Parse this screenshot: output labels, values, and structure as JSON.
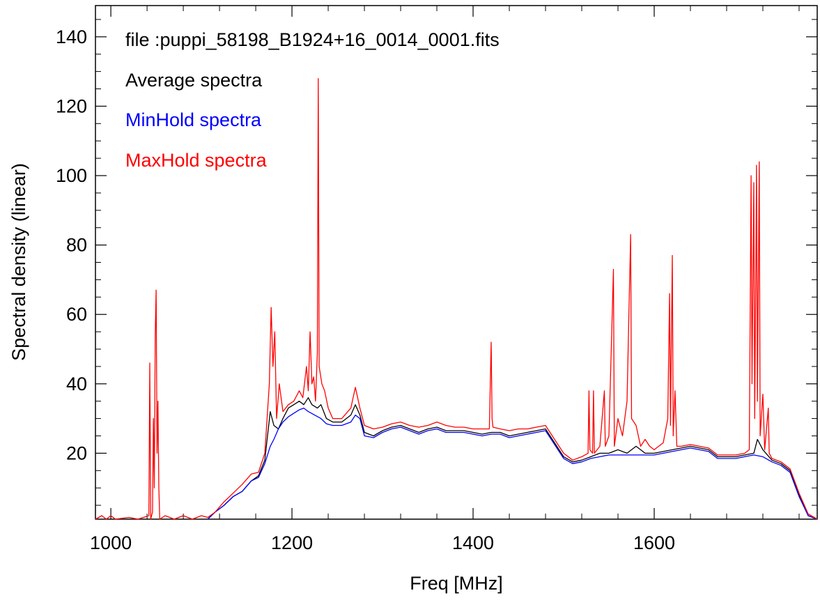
{
  "chart_data": {
    "type": "line",
    "title": "",
    "xlabel": "Freq [MHz]",
    "ylabel": "Spectral density (linear)",
    "xlim": [
      983,
      1780
    ],
    "ylim": [
      1,
      149
    ],
    "grid": false,
    "x_ticks": [
      1000,
      1200,
      1400,
      1600
    ],
    "x_tick_labels": [
      "1000",
      "1200",
      "1400",
      "1600"
    ],
    "y_ticks": [
      20,
      40,
      60,
      80,
      100,
      120,
      140
    ],
    "y_tick_labels": [
      "20",
      "40",
      "60",
      "80",
      "100",
      "120",
      "140"
    ],
    "annotations": [
      {
        "text": "file :puppi_58198_B1924+16_0014_0001.fits",
        "color": "#000000"
      },
      {
        "text": "Average spectra",
        "color": "#000000"
      },
      {
        "text": "MinHold spectra",
        "color": "#0000ff"
      },
      {
        "text": "MaxHold spectra",
        "color": "#ff0000"
      }
    ],
    "series": [
      {
        "name": "Average spectra",
        "color": "#000000",
        "points": [
          [
            1107,
            1
          ],
          [
            1115,
            3
          ],
          [
            1125,
            5
          ],
          [
            1135,
            7.5
          ],
          [
            1145,
            9
          ],
          [
            1155,
            12
          ],
          [
            1163,
            13.5
          ],
          [
            1170,
            18
          ],
          [
            1176,
            32
          ],
          [
            1180,
            28
          ],
          [
            1185,
            27
          ],
          [
            1190,
            30
          ],
          [
            1196,
            33
          ],
          [
            1202,
            34
          ],
          [
            1208,
            35
          ],
          [
            1213,
            34
          ],
          [
            1218,
            36
          ],
          [
            1222,
            34
          ],
          [
            1228,
            33
          ],
          [
            1232,
            34
          ],
          [
            1238,
            30
          ],
          [
            1245,
            29
          ],
          [
            1255,
            29
          ],
          [
            1265,
            31
          ],
          [
            1270,
            34
          ],
          [
            1275,
            31
          ],
          [
            1280,
            26
          ],
          [
            1290,
            25
          ],
          [
            1300,
            26.5
          ],
          [
            1310,
            27.5
          ],
          [
            1320,
            28
          ],
          [
            1330,
            27
          ],
          [
            1340,
            26
          ],
          [
            1350,
            27
          ],
          [
            1360,
            27.5
          ],
          [
            1370,
            26.5
          ],
          [
            1380,
            26.5
          ],
          [
            1390,
            26.5
          ],
          [
            1400,
            26
          ],
          [
            1410,
            25.5
          ],
          [
            1420,
            26
          ],
          [
            1430,
            26
          ],
          [
            1440,
            25
          ],
          [
            1450,
            25.5
          ],
          [
            1460,
            26
          ],
          [
            1470,
            26.5
          ],
          [
            1480,
            27
          ],
          [
            1490,
            23
          ],
          [
            1500,
            19
          ],
          [
            1510,
            17.5
          ],
          [
            1520,
            18
          ],
          [
            1530,
            19
          ],
          [
            1540,
            20
          ],
          [
            1550,
            20
          ],
          [
            1560,
            21
          ],
          [
            1570,
            20
          ],
          [
            1580,
            22
          ],
          [
            1590,
            20
          ],
          [
            1600,
            20
          ],
          [
            1610,
            20.5
          ],
          [
            1620,
            21
          ],
          [
            1630,
            21.5
          ],
          [
            1640,
            22
          ],
          [
            1650,
            21.5
          ],
          [
            1660,
            21
          ],
          [
            1670,
            19
          ],
          [
            1680,
            19
          ],
          [
            1690,
            19
          ],
          [
            1700,
            19.5
          ],
          [
            1710,
            20
          ],
          [
            1714,
            24
          ],
          [
            1720,
            21
          ],
          [
            1730,
            18
          ],
          [
            1740,
            17
          ],
          [
            1750,
            15
          ],
          [
            1760,
            8
          ],
          [
            1770,
            2
          ],
          [
            1780,
            1
          ]
        ]
      },
      {
        "name": "MinHold spectra",
        "color": "#0000ff",
        "points": [
          [
            1107,
            1
          ],
          [
            1115,
            3
          ],
          [
            1125,
            5
          ],
          [
            1135,
            7.5
          ],
          [
            1145,
            9
          ],
          [
            1155,
            12
          ],
          [
            1163,
            13
          ],
          [
            1170,
            17
          ],
          [
            1176,
            22
          ],
          [
            1180,
            24
          ],
          [
            1185,
            27
          ],
          [
            1190,
            29
          ],
          [
            1196,
            30.5
          ],
          [
            1202,
            31.5
          ],
          [
            1208,
            32.5
          ],
          [
            1213,
            33
          ],
          [
            1218,
            32
          ],
          [
            1225,
            31
          ],
          [
            1232,
            30
          ],
          [
            1238,
            28.5
          ],
          [
            1245,
            28
          ],
          [
            1255,
            28
          ],
          [
            1265,
            29
          ],
          [
            1270,
            31
          ],
          [
            1275,
            30
          ],
          [
            1280,
            25
          ],
          [
            1290,
            24.5
          ],
          [
            1300,
            26
          ],
          [
            1310,
            27
          ],
          [
            1320,
            27.5
          ],
          [
            1330,
            26.5
          ],
          [
            1340,
            25.5
          ],
          [
            1350,
            26.5
          ],
          [
            1360,
            27
          ],
          [
            1370,
            26
          ],
          [
            1380,
            26
          ],
          [
            1390,
            26
          ],
          [
            1400,
            25.5
          ],
          [
            1410,
            25
          ],
          [
            1420,
            25.5
          ],
          [
            1430,
            25.5
          ],
          [
            1440,
            24.5
          ],
          [
            1450,
            25
          ],
          [
            1460,
            25.5
          ],
          [
            1470,
            26
          ],
          [
            1480,
            26.5
          ],
          [
            1490,
            22.5
          ],
          [
            1500,
            18.5
          ],
          [
            1510,
            17
          ],
          [
            1520,
            17.5
          ],
          [
            1530,
            18.5
          ],
          [
            1540,
            19
          ],
          [
            1550,
            19.5
          ],
          [
            1560,
            19.5
          ],
          [
            1570,
            19.5
          ],
          [
            1580,
            19.5
          ],
          [
            1590,
            19.5
          ],
          [
            1600,
            19.5
          ],
          [
            1610,
            20
          ],
          [
            1620,
            20.5
          ],
          [
            1630,
            21
          ],
          [
            1640,
            21.5
          ],
          [
            1650,
            21
          ],
          [
            1660,
            20.5
          ],
          [
            1670,
            18.5
          ],
          [
            1680,
            18.5
          ],
          [
            1690,
            18.5
          ],
          [
            1700,
            19
          ],
          [
            1710,
            19.5
          ],
          [
            1720,
            19
          ],
          [
            1730,
            17.5
          ],
          [
            1740,
            16.5
          ],
          [
            1750,
            14.5
          ],
          [
            1760,
            7.5
          ],
          [
            1770,
            2
          ],
          [
            1780,
            1
          ]
        ]
      },
      {
        "name": "MaxHold spectra",
        "color": "#ff0000",
        "points": [
          [
            983,
            1
          ],
          [
            990,
            2
          ],
          [
            995,
            1
          ],
          [
            1000,
            2
          ],
          [
            1005,
            1
          ],
          [
            1020,
            1.5
          ],
          [
            1030,
            1
          ],
          [
            1042,
            2
          ],
          [
            1043,
            46
          ],
          [
            1044,
            1
          ],
          [
            1046,
            3
          ],
          [
            1047,
            30
          ],
          [
            1048,
            10
          ],
          [
            1049,
            54
          ],
          [
            1050,
            67
          ],
          [
            1051,
            20
          ],
          [
            1052,
            35
          ],
          [
            1053,
            10
          ],
          [
            1054,
            1
          ],
          [
            1060,
            2
          ],
          [
            1070,
            1
          ],
          [
            1080,
            2
          ],
          [
            1090,
            1
          ],
          [
            1100,
            2
          ],
          [
            1107,
            1.5
          ],
          [
            1115,
            3
          ],
          [
            1125,
            6
          ],
          [
            1135,
            8.5
          ],
          [
            1145,
            11
          ],
          [
            1155,
            14
          ],
          [
            1163,
            14.5
          ],
          [
            1170,
            20
          ],
          [
            1175,
            40
          ],
          [
            1177,
            62
          ],
          [
            1179,
            45
          ],
          [
            1181,
            55
          ],
          [
            1183,
            30
          ],
          [
            1186,
            40
          ],
          [
            1190,
            32
          ],
          [
            1196,
            34
          ],
          [
            1202,
            35
          ],
          [
            1208,
            38
          ],
          [
            1212,
            36
          ],
          [
            1216,
            45
          ],
          [
            1218,
            38
          ],
          [
            1220,
            55
          ],
          [
            1222,
            40
          ],
          [
            1224,
            42
          ],
          [
            1226,
            35
          ],
          [
            1228,
            49
          ],
          [
            1229,
            128
          ],
          [
            1230,
            45
          ],
          [
            1233,
            40
          ],
          [
            1236,
            38
          ],
          [
            1240,
            33
          ],
          [
            1245,
            30
          ],
          [
            1255,
            30
          ],
          [
            1265,
            33
          ],
          [
            1270,
            39
          ],
          [
            1275,
            33
          ],
          [
            1280,
            28
          ],
          [
            1290,
            27
          ],
          [
            1300,
            27.5
          ],
          [
            1310,
            28.5
          ],
          [
            1320,
            29
          ],
          [
            1330,
            28
          ],
          [
            1340,
            27.5
          ],
          [
            1350,
            28
          ],
          [
            1360,
            29
          ],
          [
            1370,
            28
          ],
          [
            1380,
            27.5
          ],
          [
            1390,
            27.5
          ],
          [
            1400,
            27
          ],
          [
            1410,
            27
          ],
          [
            1418,
            27
          ],
          [
            1420,
            52
          ],
          [
            1421,
            30
          ],
          [
            1422,
            27.5
          ],
          [
            1430,
            27
          ],
          [
            1440,
            26.5
          ],
          [
            1450,
            27
          ],
          [
            1460,
            27
          ],
          [
            1470,
            27.5
          ],
          [
            1480,
            28
          ],
          [
            1490,
            24
          ],
          [
            1500,
            20
          ],
          [
            1510,
            18
          ],
          [
            1520,
            19
          ],
          [
            1527,
            20
          ],
          [
            1528,
            38
          ],
          [
            1529,
            21
          ],
          [
            1532,
            20
          ],
          [
            1533,
            38
          ],
          [
            1534,
            20
          ],
          [
            1540,
            22
          ],
          [
            1545,
            38
          ],
          [
            1546,
            22
          ],
          [
            1550,
            25
          ],
          [
            1555,
            73
          ],
          [
            1556,
            22
          ],
          [
            1560,
            30
          ],
          [
            1565,
            25
          ],
          [
            1570,
            35
          ],
          [
            1574,
            83
          ],
          [
            1575,
            30
          ],
          [
            1580,
            28
          ],
          [
            1585,
            22
          ],
          [
            1590,
            24
          ],
          [
            1595,
            22
          ],
          [
            1600,
            21
          ],
          [
            1605,
            22
          ],
          [
            1610,
            23
          ],
          [
            1615,
            30
          ],
          [
            1617,
            66
          ],
          [
            1618,
            28
          ],
          [
            1620,
            77
          ],
          [
            1621,
            25
          ],
          [
            1623,
            38
          ],
          [
            1625,
            22
          ],
          [
            1630,
            22
          ],
          [
            1640,
            22.5
          ],
          [
            1650,
            22
          ],
          [
            1660,
            21.5
          ],
          [
            1670,
            19.5
          ],
          [
            1680,
            19.5
          ],
          [
            1690,
            19.5
          ],
          [
            1700,
            20
          ],
          [
            1705,
            21
          ],
          [
            1707,
            100
          ],
          [
            1708,
            40
          ],
          [
            1710,
            98
          ],
          [
            1711,
            30
          ],
          [
            1713,
            103
          ],
          [
            1714,
            35
          ],
          [
            1716,
            104
          ],
          [
            1717,
            25
          ],
          [
            1720,
            37
          ],
          [
            1722,
            21
          ],
          [
            1726,
            33
          ],
          [
            1727,
            20
          ],
          [
            1730,
            18.5
          ],
          [
            1740,
            17.5
          ],
          [
            1750,
            15.5
          ],
          [
            1760,
            8.5
          ],
          [
            1770,
            2.5
          ],
          [
            1780,
            1
          ]
        ]
      }
    ]
  }
}
